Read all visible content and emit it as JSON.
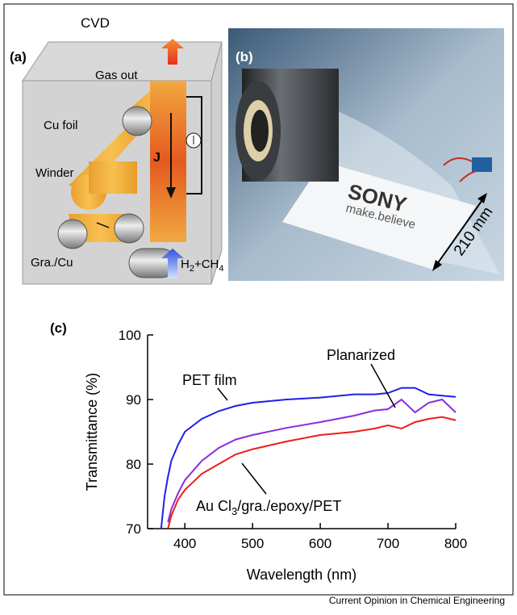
{
  "panel_a": {
    "label": "(a)",
    "title": "CVD",
    "gas_out": "Gas out",
    "cu_foil": "Cu foil",
    "winder": "Winder",
    "gra_cu": "Gra./Cu",
    "current": "J",
    "gas_in": [
      "H",
      "2",
      "+CH",
      "4"
    ]
  },
  "panel_b": {
    "label": "(b)",
    "brand": "SONY",
    "slogan": "make.believe",
    "scale": "210 mm"
  },
  "chart_data": {
    "type": "line",
    "label": "(c)",
    "x_label": "Wavelength (nm)",
    "y_label": "Transmittance (%)",
    "x": [
      360,
      365,
      370,
      375,
      380,
      390,
      400,
      425,
      450,
      475,
      500,
      550,
      600,
      650,
      680,
      700,
      720,
      740,
      760,
      780,
      800
    ],
    "series": [
      {
        "name": "PET film",
        "color": "#1f1fe6",
        "values": [
          null,
          70,
          75,
          78,
          80.5,
          83,
          85,
          87,
          88.2,
          89,
          89.5,
          90,
          90.3,
          90.8,
          90.8,
          91,
          91.8,
          91.8,
          90.8,
          90.6,
          90.4
        ]
      },
      {
        "name": "Planarized",
        "color": "#8a2be2",
        "values": [
          null,
          null,
          null,
          71,
          73,
          75.5,
          77.5,
          80.5,
          82.5,
          83.8,
          84.5,
          85.6,
          86.5,
          87.5,
          88.3,
          88.5,
          90,
          88,
          89.5,
          90,
          88
        ]
      },
      {
        "name": [
          "Au Cl",
          "3",
          "/gra./epoxy/PET"
        ],
        "color": "#ee1c1c",
        "values": [
          null,
          null,
          null,
          70,
          72,
          74.5,
          76,
          78.5,
          80,
          81.5,
          82.3,
          83.5,
          84.5,
          85,
          85.5,
          86,
          85.5,
          86.5,
          87,
          87.3,
          86.8
        ]
      }
    ],
    "xlim": [
      345,
      800
    ],
    "xticks": [
      400,
      500,
      600,
      700,
      800
    ],
    "ylim": [
      70,
      100
    ],
    "yticks": [
      70,
      80,
      90,
      100
    ]
  },
  "credit": "Current Opinion in Chemical Engineering"
}
